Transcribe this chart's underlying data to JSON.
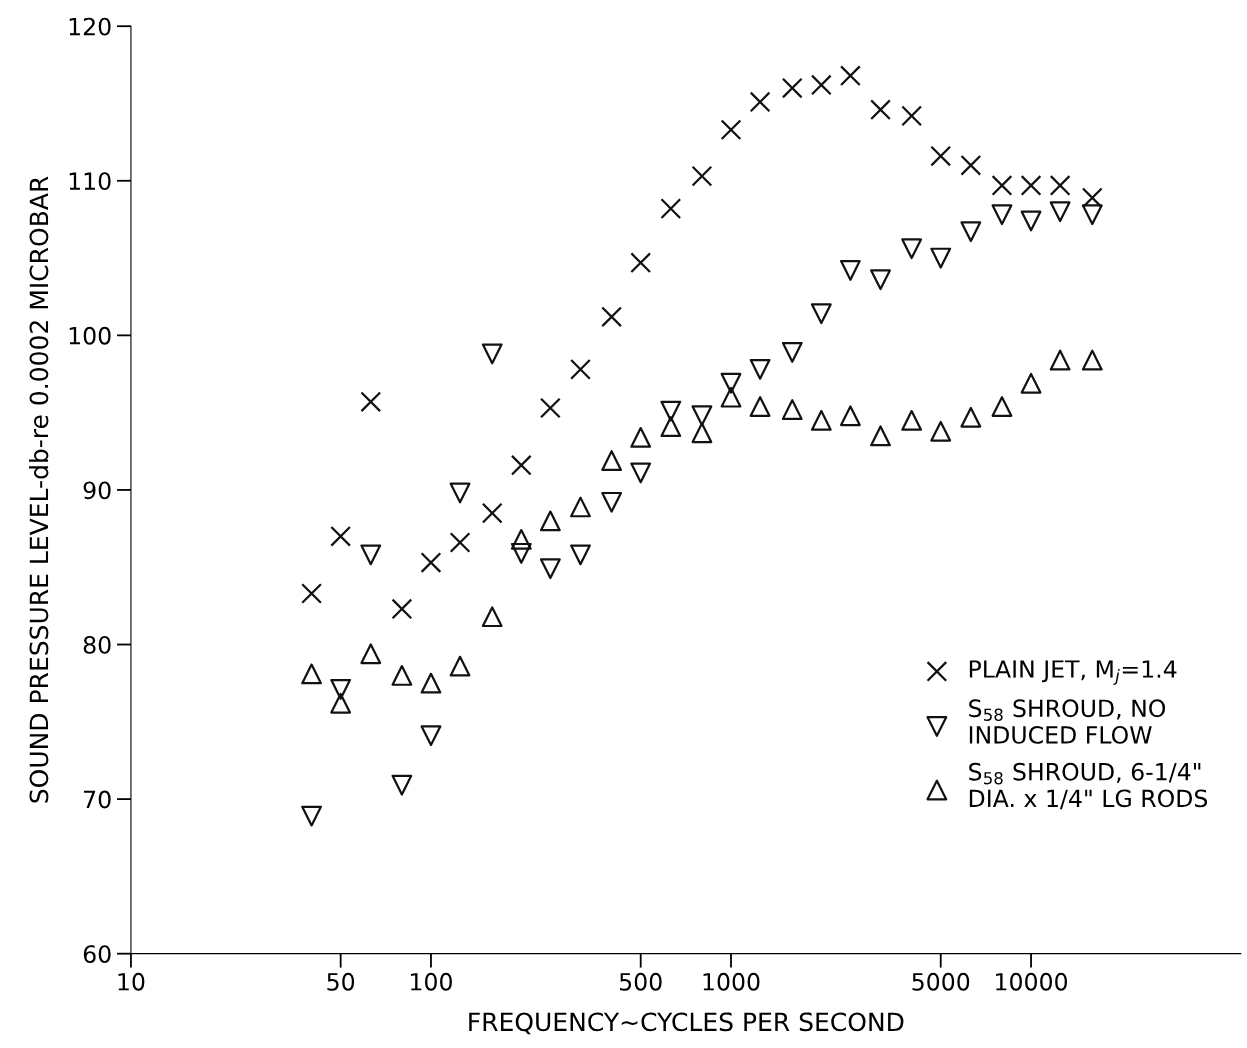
{
  "chart_data": {
    "type": "scatter",
    "xlabel": "FREQUENCY~CYCLES PER SECOND",
    "ylabel": "SOUND PRESSURE LEVEL-db-re 0.0002 MICROBAR",
    "x": [
      40,
      50,
      63,
      80,
      100,
      125,
      160,
      200,
      250,
      315,
      400,
      500,
      630,
      800,
      1000,
      1250,
      1600,
      2000,
      2500,
      3150,
      4000,
      5000,
      6300,
      8000,
      10000,
      12500,
      16000
    ],
    "series": [
      {
        "name": "PLAIN JET, M$_{j}$=1.4",
        "color": "#111111",
        "marker": "cross",
        "values": [
          83.3,
          87.0,
          95.7,
          82.3,
          85.3,
          86.6,
          88.5,
          91.6,
          95.3,
          97.8,
          101.2,
          104.7,
          108.2,
          110.3,
          113.3,
          115.1,
          116.0,
          116.2,
          116.8,
          114.6,
          114.2,
          111.6,
          111.0,
          109.7,
          109.7,
          109.7,
          108.9
        ]
      },
      {
        "name": "S$_{58}$ SHROUD, NO\nINDUCED FLOW",
        "color": "#111111",
        "marker": "triangle_down",
        "values": [
          68.9,
          77.1,
          85.8,
          70.9,
          74.1,
          89.8,
          98.8,
          85.9,
          84.9,
          85.8,
          89.2,
          91.1,
          95.1,
          94.8,
          96.9,
          97.8,
          98.9,
          101.4,
          104.2,
          103.6,
          105.6,
          105.0,
          106.7,
          107.8,
          107.4,
          108.0,
          107.8
        ]
      },
      {
        "name": "S$_{58}$ SHROUD, 6-1/4\"\nDIA. x 1/4\" LG RODS",
        "color": "#111111",
        "marker": "triangle",
        "values": [
          78.1,
          76.2,
          79.4,
          78.0,
          77.5,
          78.6,
          81.8,
          86.8,
          88.0,
          88.9,
          91.9,
          93.4,
          94.1,
          93.7,
          96.0,
          95.4,
          95.2,
          94.5,
          94.8,
          93.5,
          94.5,
          93.8,
          94.7,
          95.4,
          96.9,
          98.4,
          98.4
        ]
      }
    ],
    "log": "x",
    "xlim": [
      10,
      50000
    ],
    "xticks": [
      10,
      50,
      100,
      500,
      1000,
      5000,
      10000
    ],
    "ylim": [
      60,
      120
    ],
    "yticks": [
      60,
      70,
      80,
      90,
      100,
      110,
      120
    ],
    "grid": false,
    "legend": "bottom right"
  }
}
